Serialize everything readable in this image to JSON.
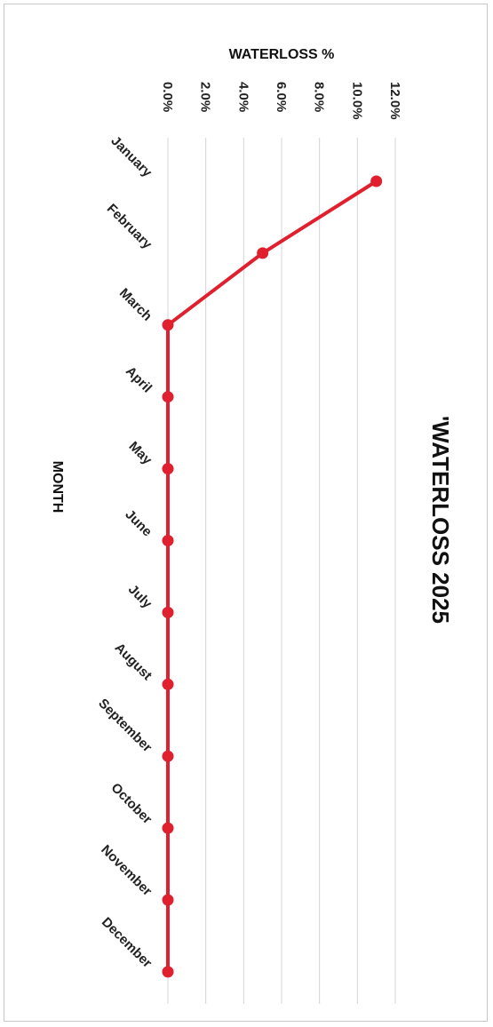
{
  "chart_data": {
    "type": "line",
    "title": "'WATERLOSS 2025",
    "value_axis_title": "WATERLOSS %",
    "category_axis_title": "MONTH",
    "categories": [
      "January",
      "February",
      "March",
      "April",
      "May",
      "June",
      "July",
      "August",
      "September",
      "October",
      "November",
      "December"
    ],
    "series": [
      {
        "values": [
          11.0,
          5.0,
          0.0,
          0.0,
          0.0,
          0.0,
          0.0,
          0.0,
          0.0,
          0.0,
          0.0,
          0.0
        ]
      }
    ],
    "value_ticks": [
      "0.0%",
      "2.0%",
      "4.0%",
      "6.0%",
      "8.0%",
      "10.0%",
      "12.0%"
    ],
    "ylim": [
      0,
      12
    ],
    "grid": true,
    "orientation": "rotated 90 degrees clockwise",
    "colors": {
      "line": "#e0202e",
      "grid": "#d4d4d4"
    }
  }
}
